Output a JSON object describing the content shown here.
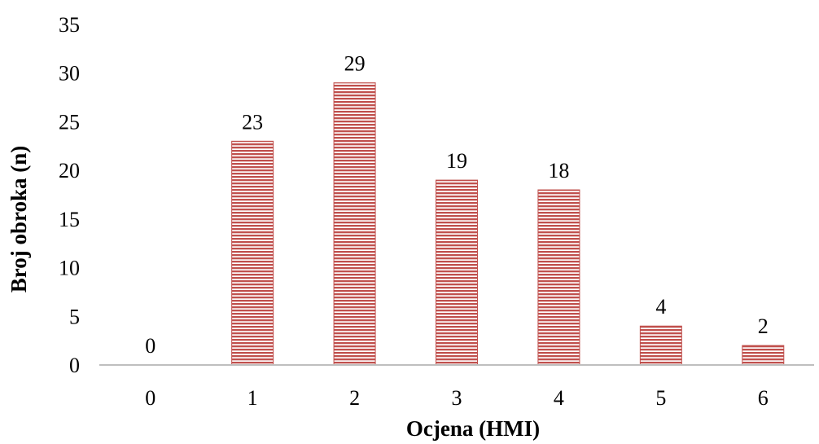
{
  "chart_data": {
    "type": "bar",
    "categories": [
      "0",
      "1",
      "2",
      "3",
      "4",
      "5",
      "6"
    ],
    "values": [
      0,
      23,
      29,
      19,
      18,
      4,
      2
    ],
    "data_labels": [
      "0",
      "23",
      "29",
      "19",
      "18",
      "4",
      "2"
    ],
    "xlabel": "Ocjena (HMI)",
    "ylabel": "Broj obroka (n)",
    "ylim": [
      0,
      35
    ],
    "yticks": [
      "0",
      "5",
      "10",
      "15",
      "20",
      "25",
      "30",
      "35"
    ],
    "grid": false,
    "legend": "none",
    "bar_color": "#c0504d",
    "bar_stripe_color": "#ffffff",
    "axis_color": "#bfbfbf"
  }
}
